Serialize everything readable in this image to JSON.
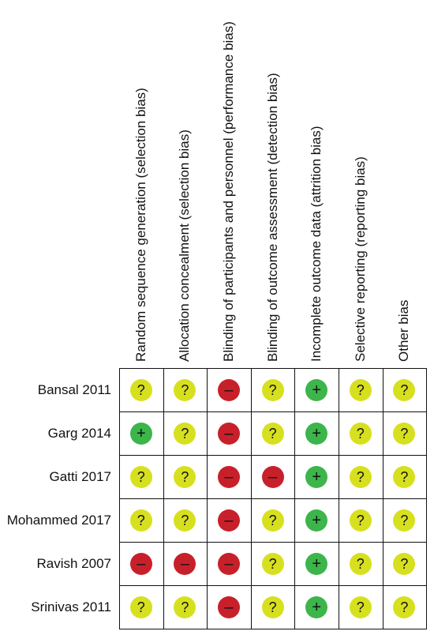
{
  "domains": [
    "Random sequence generation (selection bias)",
    "Allocation concealment (selection bias)",
    "Blinding of participants and personnel (performance bias)",
    "Blinding of outcome assessment (detection bias)",
    "Incomplete outcome data (attrition bias)",
    "Selective reporting (reporting bias)",
    "Other bias"
  ],
  "studies": [
    "Bansal 2011",
    "Garg 2014",
    "Gatti 2017",
    "Mohammed 2017",
    "Ravish 2007",
    "Srinivas 2011"
  ],
  "judgements": [
    [
      "unclear",
      "unclear",
      "high",
      "unclear",
      "low",
      "unclear",
      "unclear"
    ],
    [
      "low",
      "unclear",
      "high",
      "unclear",
      "low",
      "unclear",
      "unclear"
    ],
    [
      "unclear",
      "unclear",
      "high",
      "high",
      "low",
      "unclear",
      "unclear"
    ],
    [
      "unclear",
      "unclear",
      "high",
      "unclear",
      "low",
      "unclear",
      "unclear"
    ],
    [
      "high",
      "high",
      "high",
      "unclear",
      "low",
      "unclear",
      "unclear"
    ],
    [
      "unclear",
      "unclear",
      "high",
      "unclear",
      "low",
      "unclear",
      "unclear"
    ]
  ],
  "symbols": {
    "low": "+",
    "high": "–",
    "unclear": "?"
  },
  "colors": {
    "low": "#3cb54a",
    "high": "#c8202a",
    "unclear": "#d7e01f"
  },
  "icons": {
    "low": "plus-circle-icon",
    "high": "minus-circle-icon",
    "unclear": "question-circle-icon"
  }
}
